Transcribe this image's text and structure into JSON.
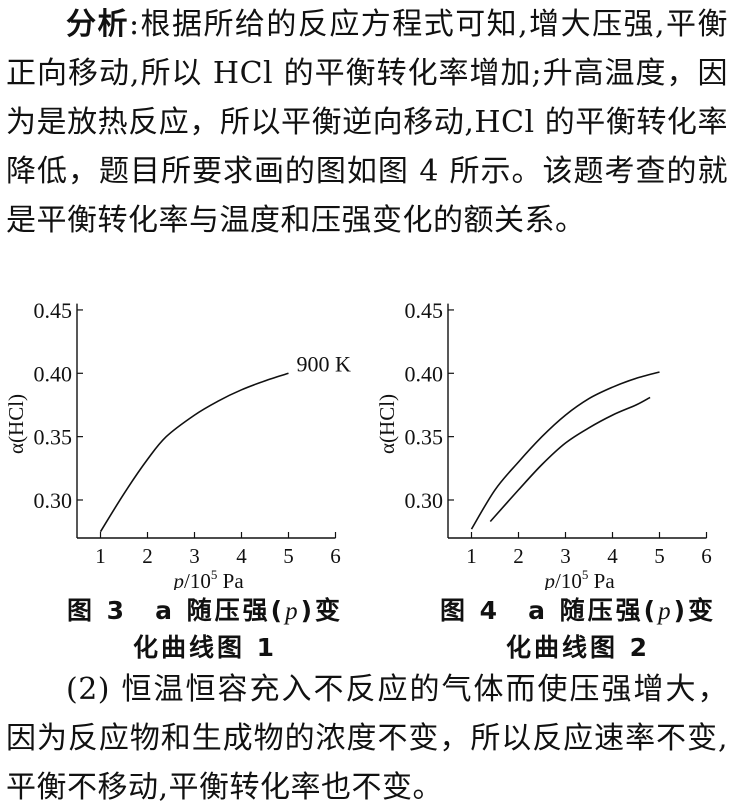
{
  "para1": {
    "lead": "分析",
    "sep": ":",
    "text": "根据所给的反应方程式可知,增大压强,平衡正向移动,所以 HCl 的平衡转化率增加;升高温度，因为是放热反应，所以平衡逆向移动,HCl 的平衡转化率降低，题目所要求画的图如图 4 所示。该题考查的就是平衡转化率与温度和压强变化的额关系。"
  },
  "figure3": {
    "caption_line1_a": "图 3　a 随压强(",
    "caption_var": "p",
    "caption_line1_b": ")变",
    "caption_line2": "化曲线图 1"
  },
  "figure4": {
    "caption_line1_a": "图 4　a 随压强(",
    "caption_var": "p",
    "caption_line1_b": ")变",
    "caption_line2": "化曲线图 2"
  },
  "para2": {
    "text": "(2) 恒温恒容充入不反应的气体而使压强增大，因为反应物和生成物的浓度不变，所以反应速率不变,平衡不移动,平衡转化率也不变。"
  },
  "chart_data": [
    {
      "type": "line",
      "ylabel": "α(HCl)",
      "xlabel_var": "p",
      "xlabel_unit": "/10",
      "xlabel_exp": "5",
      "xlabel_tail": " Pa",
      "x_ticks": [
        "1",
        "2",
        "3",
        "4",
        "5",
        "6"
      ],
      "y_ticks": [
        "0.45",
        "0.40",
        "0.35",
        "0.30"
      ],
      "xlim": [
        0.5,
        6
      ],
      "ylim": [
        0.27,
        0.45
      ],
      "series": [
        {
          "name": "900 K",
          "x": [
            1.0,
            1.5,
            2.0,
            2.4,
            3.0,
            3.5,
            4.0,
            4.5,
            5.0
          ],
          "y": [
            0.275,
            0.305,
            0.332,
            0.35,
            0.367,
            0.378,
            0.387,
            0.394,
            0.4
          ]
        }
      ]
    },
    {
      "type": "line",
      "ylabel": "α(HCl)",
      "xlabel_var": "p",
      "xlabel_unit": "/10",
      "xlabel_exp": "5",
      "xlabel_tail": " Pa",
      "x_ticks": [
        "1",
        "2",
        "3",
        "4",
        "5",
        "6"
      ],
      "y_ticks": [
        "0.45",
        "0.40",
        "0.35",
        "0.30"
      ],
      "xlim": [
        0.5,
        6
      ],
      "ylim": [
        0.27,
        0.45
      ],
      "series": [
        {
          "x": [
            1.0,
            1.5,
            2.0,
            2.5,
            3.0,
            3.5,
            4.0,
            4.5,
            5.0
          ],
          "y": [
            0.277,
            0.308,
            0.33,
            0.35,
            0.367,
            0.38,
            0.389,
            0.396,
            0.401
          ]
        },
        {
          "x": [
            1.4,
            2.0,
            2.5,
            3.0,
            3.5,
            4.0,
            4.5,
            4.8
          ],
          "y": [
            0.283,
            0.308,
            0.328,
            0.345,
            0.357,
            0.367,
            0.375,
            0.381
          ]
        }
      ]
    }
  ]
}
